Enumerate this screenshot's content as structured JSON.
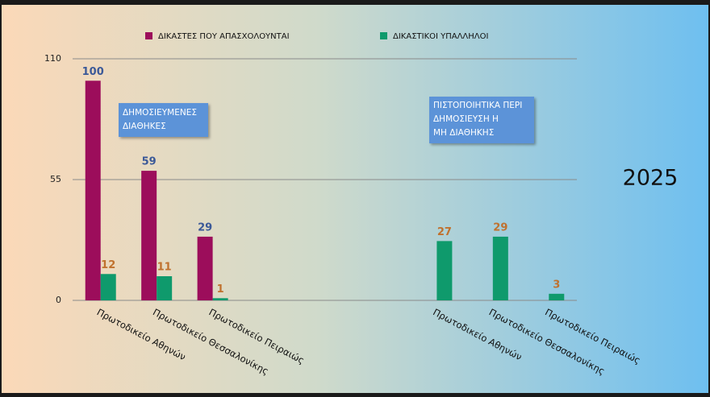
{
  "chart_data": {
    "type": "bar",
    "categories": [
      "Πρωτοδικείο Αθηνών",
      "Πρωτοδικείο Θεσσαλονίκης",
      "Πρωτοδικείο Πειραιώς",
      null,
      null,
      null,
      "Πρωτοδικείο Αθηνών",
      "Πρωτοδικείο Θεσσαλονίκης",
      "Πρωτοδικείο Πειραιώς"
    ],
    "series": [
      {
        "name": "ΔΙΚΑΣΤΕΣ ΠΟΥ ΑΠΑΣΧΟΛΟΥΝΤΑΙ",
        "color": "#9c0d5b",
        "label_color": "#3b5998",
        "values": [
          100,
          59,
          29,
          null,
          null,
          null,
          null,
          null,
          null
        ]
      },
      {
        "name": "ΔΙΚΑΣΤΙΚΟΙ ΥΠΑΛΛΗΛΟΙ",
        "color": "#0f9a6c",
        "label_color": "#c0712e",
        "values": [
          12,
          11,
          1,
          null,
          null,
          null,
          27,
          29,
          3
        ]
      }
    ],
    "ylim": [
      0,
      110
    ],
    "yticks": [
      0,
      55,
      110
    ],
    "grid": true,
    "legend": "top",
    "annotations": [
      [
        "ΔΗΜΟΣΙΕΥΜΕΝΕΣ",
        "ΔΙΑΘΗΚΕΣ"
      ],
      [
        "ΠΙΣΤΟΠΟΙΗΤΙΚΑ ΠΕΡΙ",
        "ΔΗΜΟΣΙΕΥΣΗ Η",
        "ΜΗ ΔΙΑΘΗΚΗΣ"
      ]
    ],
    "year": "2025"
  }
}
